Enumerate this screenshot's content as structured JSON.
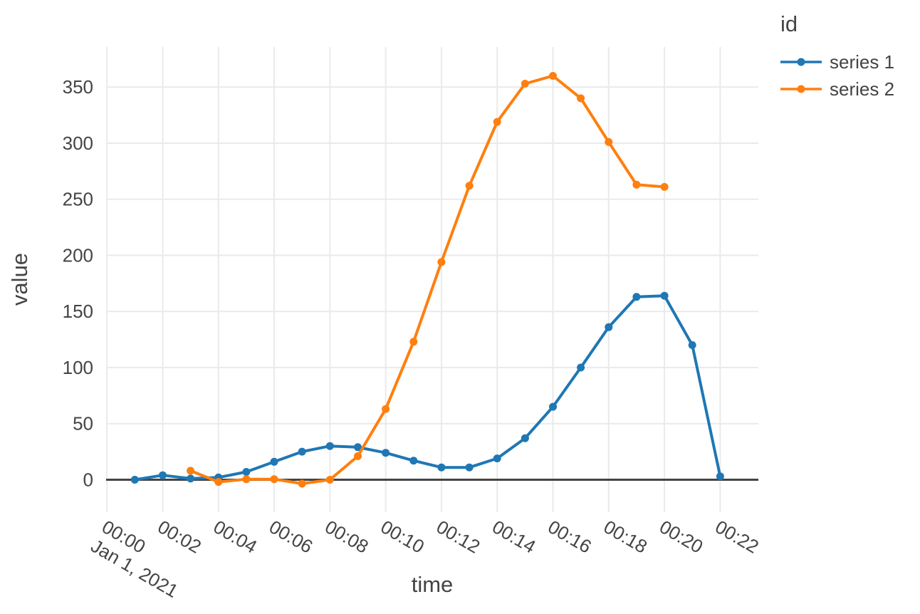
{
  "colors": {
    "background": "#ffffff",
    "text": "#444444",
    "grid": "#eaeaea",
    "zeroline": "#444444",
    "series1": "#1f77b4",
    "series2": "#ff7f0e"
  },
  "chart_data": {
    "type": "line",
    "title": "",
    "xlabel": "time",
    "ylabel": "value",
    "grid": true,
    "legend": {
      "title": "id",
      "position": "top-right",
      "entries": [
        "series 1",
        "series 2"
      ]
    },
    "x_axis": {
      "kind": "time",
      "date_context_label": "Jan 1, 2021",
      "tick_minutes": [
        0,
        2,
        4,
        6,
        8,
        10,
        12,
        14,
        16,
        18,
        20,
        22
      ],
      "tick_labels": [
        "00:00",
        "00:02",
        "00:04",
        "00:06",
        "00:08",
        "00:10",
        "00:12",
        "00:14",
        "00:16",
        "00:18",
        "00:20",
        "00:22"
      ],
      "tick_angle_deg": 30,
      "range_minutes": [
        -0.03,
        23.37
      ]
    },
    "y_axis": {
      "ticks": [
        0,
        50,
        100,
        150,
        200,
        250,
        300,
        350
      ],
      "range": [
        -28.9,
        385.7
      ],
      "zeroline": true
    },
    "series": [
      {
        "name": "series 1",
        "color": "#1f77b4",
        "times": [
          "00:01",
          "00:02",
          "00:03",
          "00:04",
          "00:05",
          "00:06",
          "00:07",
          "00:08",
          "00:09",
          "00:10",
          "00:11",
          "00:12",
          "00:13",
          "00:14",
          "00:15",
          "00:16",
          "00:17",
          "00:18",
          "00:19",
          "00:20",
          "00:21",
          "00:22"
        ],
        "x_minutes": [
          1,
          2,
          3,
          4,
          5,
          6,
          7,
          8,
          9,
          10,
          11,
          12,
          13,
          14,
          15,
          16,
          17,
          18,
          19,
          20,
          21,
          22
        ],
        "values": [
          0,
          4,
          1,
          2,
          7,
          16,
          25,
          30,
          29,
          24,
          17,
          11,
          11,
          19,
          37,
          65,
          100,
          136,
          163,
          164,
          120,
          3
        ]
      },
      {
        "name": "series 2",
        "color": "#ff7f0e",
        "times": [
          "00:03",
          "00:04",
          "00:05",
          "00:06",
          "00:07",
          "00:08",
          "00:09",
          "00:10",
          "00:11",
          "00:12",
          "00:13",
          "00:14",
          "00:15",
          "00:16",
          "00:17",
          "00:18",
          "00:19",
          "00:20"
        ],
        "x_minutes": [
          3,
          4,
          5,
          6,
          7,
          8,
          9,
          10,
          11,
          12,
          13,
          14,
          15,
          16,
          17,
          18,
          19,
          20
        ],
        "values": [
          8,
          -2,
          0.5,
          0.5,
          -3.5,
          0,
          21,
          63,
          123,
          194,
          262,
          319,
          353,
          360,
          340,
          301,
          263,
          261
        ]
      }
    ]
  }
}
